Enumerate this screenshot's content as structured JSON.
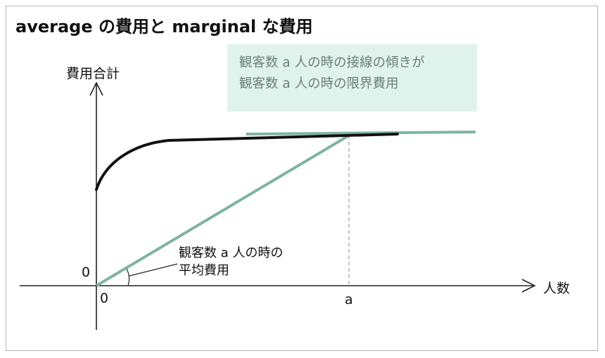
{
  "title": "average の費用と marginal な費用",
  "note": {
    "line1": "観客数 a 人の時の接線の傾きが",
    "line2": "観客数 a 人の時の限界費用"
  },
  "axes": {
    "y_label": "費用合計",
    "x_label": "人数",
    "y_origin": "0",
    "x_origin": "0",
    "x_tick_a": "a"
  },
  "annotation": {
    "line1": "観客数 a 人の時の",
    "line2": "平均費用"
  },
  "colors": {
    "curve": "#111111",
    "lines": "#7fb3a3",
    "note_bg": "#dff2ec",
    "note_text": "#6e7f7a"
  }
}
